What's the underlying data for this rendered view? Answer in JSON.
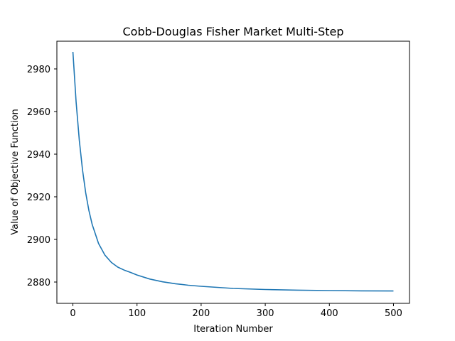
{
  "chart_data": {
    "type": "line",
    "title": "Cobb-Douglas Fisher Market Multi-Step",
    "xlabel": "Iteration Number",
    "ylabel": "Value of Objective Function",
    "xlim": [
      -25,
      525
    ],
    "ylim": [
      2870,
      2993
    ],
    "xticks": [
      0,
      100,
      200,
      300,
      400,
      500
    ],
    "yticks": [
      2880,
      2900,
      2920,
      2940,
      2960,
      2980
    ],
    "grid": false,
    "series": [
      {
        "color": "#1f77b4",
        "x": [
          0,
          5,
          10,
          15,
          20,
          25,
          30,
          40,
          50,
          60,
          70,
          80,
          90,
          100,
          120,
          140,
          160,
          180,
          200,
          250,
          300,
          350,
          400,
          450,
          500
        ],
        "y": [
          2988,
          2964.5,
          2946.5,
          2932.6,
          2921.8,
          2913.5,
          2907.1,
          2898.1,
          2892.6,
          2889.2,
          2887.0,
          2885.6,
          2884.5,
          2883.3,
          2881.4,
          2880.1,
          2879.2,
          2878.5,
          2878.0,
          2877.0,
          2876.5,
          2876.2,
          2876.0,
          2875.85,
          2875.8
        ]
      }
    ]
  }
}
